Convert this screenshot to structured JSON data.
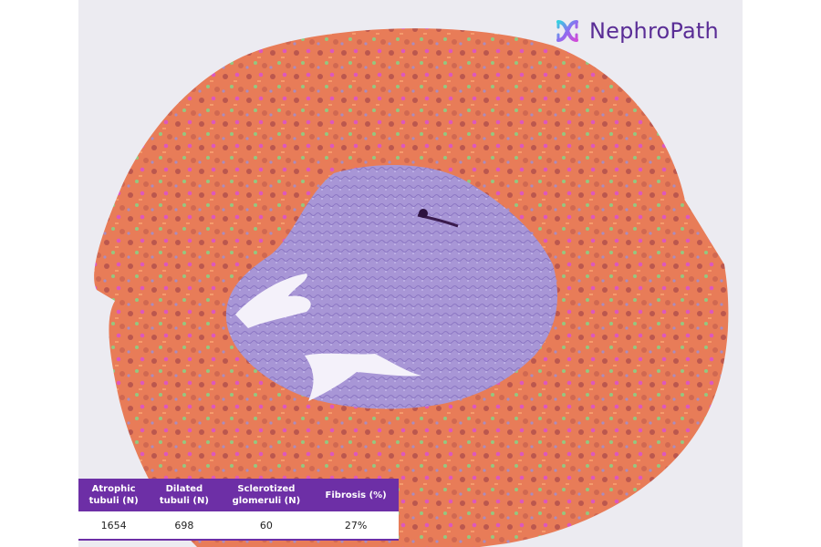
{
  "brand": {
    "name": "NephroPath",
    "logo_icon": "interlocking-x-logo",
    "color": "#5a2d96"
  },
  "colors": {
    "cortex": "#e87c58",
    "medulla": "#a48fd1",
    "glomeruli": "#d94adf",
    "atrophic_tubuli": "#a9484a",
    "dilated_tubuli": "#7fd98a",
    "table_header": "#6d2fa6"
  },
  "metrics_table": {
    "headers": [
      "Atrophic\ntubuli (N)",
      "Dilated\ntubuli (N)",
      "Sclerotized\nglomeruli (N)",
      "Fibrosis (%)"
    ],
    "values": [
      "1654",
      "698",
      "60",
      "27%"
    ]
  }
}
